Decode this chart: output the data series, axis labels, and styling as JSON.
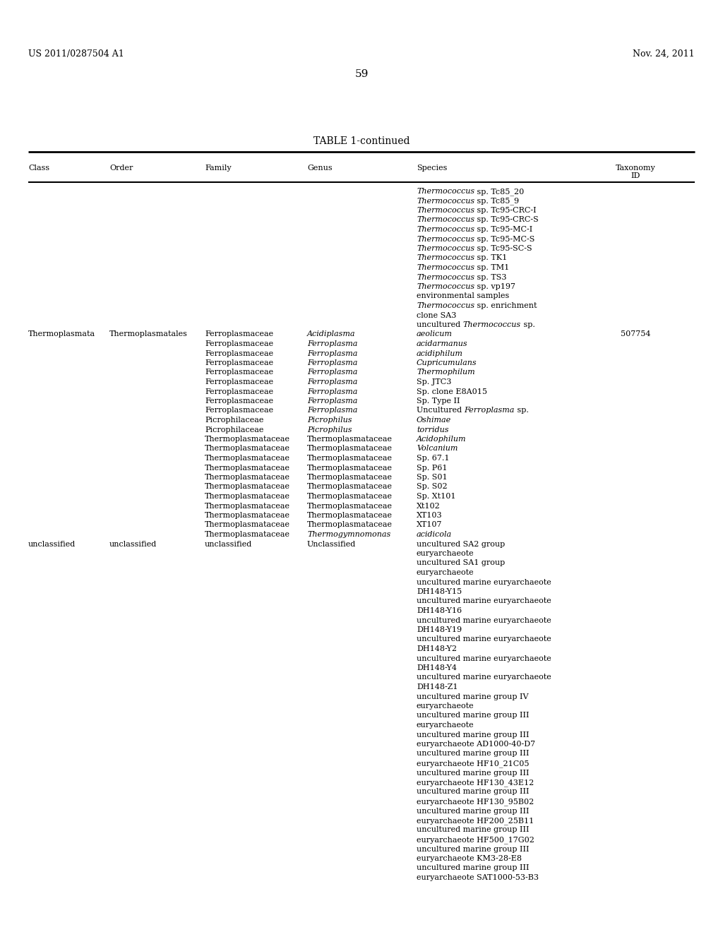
{
  "page_header_left": "US 2011/0287504 A1",
  "page_header_right": "Nov. 24, 2011",
  "page_number": "59",
  "table_title": "TABLE 1-continued",
  "background": "#ffffff",
  "text_color": "#000000",
  "rows": [
    {
      "class": "",
      "order": "",
      "family": "",
      "genus_text": "",
      "genus_italic": false,
      "species_parts": [
        [
          "italic",
          "Thermococcus"
        ],
        [
          "normal",
          " sp. Tc85_20"
        ]
      ],
      "taxid": ""
    },
    {
      "class": "",
      "order": "",
      "family": "",
      "genus_text": "",
      "genus_italic": false,
      "species_parts": [
        [
          "italic",
          "Thermococcus"
        ],
        [
          "normal",
          " sp. Tc85_9"
        ]
      ],
      "taxid": ""
    },
    {
      "class": "",
      "order": "",
      "family": "",
      "genus_text": "",
      "genus_italic": false,
      "species_parts": [
        [
          "italic",
          "Thermococcus"
        ],
        [
          "normal",
          " sp. Tc95-CRC-I"
        ]
      ],
      "taxid": ""
    },
    {
      "class": "",
      "order": "",
      "family": "",
      "genus_text": "",
      "genus_italic": false,
      "species_parts": [
        [
          "italic",
          "Thermococcus"
        ],
        [
          "normal",
          " sp. Tc95-CRC-S"
        ]
      ],
      "taxid": ""
    },
    {
      "class": "",
      "order": "",
      "family": "",
      "genus_text": "",
      "genus_italic": false,
      "species_parts": [
        [
          "italic",
          "Thermococcus"
        ],
        [
          "normal",
          " sp. Tc95-MC-I"
        ]
      ],
      "taxid": ""
    },
    {
      "class": "",
      "order": "",
      "family": "",
      "genus_text": "",
      "genus_italic": false,
      "species_parts": [
        [
          "italic",
          "Thermococcus"
        ],
        [
          "normal",
          " sp. Tc95-MC-S"
        ]
      ],
      "taxid": ""
    },
    {
      "class": "",
      "order": "",
      "family": "",
      "genus_text": "",
      "genus_italic": false,
      "species_parts": [
        [
          "italic",
          "Thermococcus"
        ],
        [
          "normal",
          " sp. Tc95-SC-S"
        ]
      ],
      "taxid": ""
    },
    {
      "class": "",
      "order": "",
      "family": "",
      "genus_text": "",
      "genus_italic": false,
      "species_parts": [
        [
          "italic",
          "Thermococcus"
        ],
        [
          "normal",
          " sp. TK1"
        ]
      ],
      "taxid": ""
    },
    {
      "class": "",
      "order": "",
      "family": "",
      "genus_text": "",
      "genus_italic": false,
      "species_parts": [
        [
          "italic",
          "Thermococcus"
        ],
        [
          "normal",
          " sp. TM1"
        ]
      ],
      "taxid": ""
    },
    {
      "class": "",
      "order": "",
      "family": "",
      "genus_text": "",
      "genus_italic": false,
      "species_parts": [
        [
          "italic",
          "Thermococcus"
        ],
        [
          "normal",
          " sp. TS3"
        ]
      ],
      "taxid": ""
    },
    {
      "class": "",
      "order": "",
      "family": "",
      "genus_text": "",
      "genus_italic": false,
      "species_parts": [
        [
          "italic",
          "Thermococcus"
        ],
        [
          "normal",
          " sp. vp197"
        ]
      ],
      "taxid": ""
    },
    {
      "class": "",
      "order": "",
      "family": "",
      "genus_text": "",
      "genus_italic": false,
      "species_parts": [
        [
          "normal",
          "environmental samples"
        ]
      ],
      "taxid": ""
    },
    {
      "class": "",
      "order": "",
      "family": "",
      "genus_text": "",
      "genus_italic": false,
      "species_parts": [
        [
          "italic",
          "Thermococcus"
        ],
        [
          "normal",
          " sp. enrichment"
        ]
      ],
      "taxid": "",
      "continuation": "clone SA3"
    },
    {
      "class": "",
      "order": "",
      "family": "",
      "genus_text": "",
      "genus_italic": false,
      "species_parts": [
        [
          "normal",
          "uncultured "
        ],
        [
          "italic",
          "Thermococcus"
        ],
        [
          "normal",
          " sp."
        ]
      ],
      "taxid": ""
    },
    {
      "class": "Thermoplasmata",
      "order": "Thermoplasmatales",
      "family": "Ferroplasmaceae",
      "genus_text": "Acidiplasma",
      "genus_italic": true,
      "species_parts": [
        [
          "italic",
          "aeolicum"
        ]
      ],
      "taxid": "507754"
    },
    {
      "class": "",
      "order": "",
      "family": "Ferroplasmaceae",
      "genus_text": "Ferroplasma",
      "genus_italic": true,
      "species_parts": [
        [
          "italic",
          "acidarmanus"
        ]
      ],
      "taxid": ""
    },
    {
      "class": "",
      "order": "",
      "family": "Ferroplasmaceae",
      "genus_text": "Ferroplasma",
      "genus_italic": true,
      "species_parts": [
        [
          "italic",
          "acidiphilum"
        ]
      ],
      "taxid": ""
    },
    {
      "class": "",
      "order": "",
      "family": "Ferroplasmaceae",
      "genus_text": "Ferroplasma",
      "genus_italic": true,
      "species_parts": [
        [
          "italic",
          "Cupricumulans"
        ]
      ],
      "taxid": ""
    },
    {
      "class": "",
      "order": "",
      "family": "Ferroplasmaceae",
      "genus_text": "Ferroplasma",
      "genus_italic": true,
      "species_parts": [
        [
          "italic",
          "Thermophilum"
        ]
      ],
      "taxid": ""
    },
    {
      "class": "",
      "order": "",
      "family": "Ferroplasmaceae",
      "genus_text": "Ferroplasma",
      "genus_italic": true,
      "species_parts": [
        [
          "normal",
          "Sp. JTC3"
        ]
      ],
      "taxid": ""
    },
    {
      "class": "",
      "order": "",
      "family": "Ferroplasmaceae",
      "genus_text": "Ferroplasma",
      "genus_italic": true,
      "species_parts": [
        [
          "normal",
          "Sp. clone E8A015"
        ]
      ],
      "taxid": ""
    },
    {
      "class": "",
      "order": "",
      "family": "Ferroplasmaceae",
      "genus_text": "Ferroplasma",
      "genus_italic": true,
      "species_parts": [
        [
          "normal",
          "Sp. Type II"
        ]
      ],
      "taxid": ""
    },
    {
      "class": "",
      "order": "",
      "family": "Ferroplasmaceae",
      "genus_text": "Ferroplasma",
      "genus_italic": true,
      "species_parts": [
        [
          "normal",
          "Uncultured "
        ],
        [
          "italic",
          "Ferroplasma"
        ],
        [
          "normal",
          " sp."
        ]
      ],
      "taxid": ""
    },
    {
      "class": "",
      "order": "",
      "family": "Picrophilaceae",
      "genus_text": "Picrophilus",
      "genus_italic": true,
      "species_parts": [
        [
          "italic",
          "Oshimae"
        ]
      ],
      "taxid": ""
    },
    {
      "class": "",
      "order": "",
      "family": "Picrophilaceae",
      "genus_text": "Picrophilus",
      "genus_italic": true,
      "species_parts": [
        [
          "italic",
          "torridus"
        ]
      ],
      "taxid": ""
    },
    {
      "class": "",
      "order": "",
      "family": "Thermoplasmataceae",
      "genus_text": "Thermoplasmataceae",
      "genus_italic": false,
      "species_parts": [
        [
          "italic",
          "Acidophilum"
        ]
      ],
      "taxid": ""
    },
    {
      "class": "",
      "order": "",
      "family": "Thermoplasmataceae",
      "genus_text": "Thermoplasmataceae",
      "genus_italic": false,
      "species_parts": [
        [
          "italic",
          "Volcanium"
        ]
      ],
      "taxid": ""
    },
    {
      "class": "",
      "order": "",
      "family": "Thermoplasmataceae",
      "genus_text": "Thermoplasmataceae",
      "genus_italic": false,
      "species_parts": [
        [
          "normal",
          "Sp. 67.1"
        ]
      ],
      "taxid": ""
    },
    {
      "class": "",
      "order": "",
      "family": "Thermoplasmataceae",
      "genus_text": "Thermoplasmataceae",
      "genus_italic": false,
      "species_parts": [
        [
          "normal",
          "Sp. P61"
        ]
      ],
      "taxid": ""
    },
    {
      "class": "",
      "order": "",
      "family": "Thermoplasmataceae",
      "genus_text": "Thermoplasmataceae",
      "genus_italic": false,
      "species_parts": [
        [
          "normal",
          "Sp. S01"
        ]
      ],
      "taxid": ""
    },
    {
      "class": "",
      "order": "",
      "family": "Thermoplasmataceae",
      "genus_text": "Thermoplasmataceae",
      "genus_italic": false,
      "species_parts": [
        [
          "normal",
          "Sp. S02"
        ]
      ],
      "taxid": ""
    },
    {
      "class": "",
      "order": "",
      "family": "Thermoplasmataceae",
      "genus_text": "Thermoplasmataceae",
      "genus_italic": false,
      "species_parts": [
        [
          "normal",
          "Sp. Xt101"
        ]
      ],
      "taxid": ""
    },
    {
      "class": "",
      "order": "",
      "family": "Thermoplasmataceae",
      "genus_text": "Thermoplasmataceae",
      "genus_italic": false,
      "species_parts": [
        [
          "normal",
          "Xt102"
        ]
      ],
      "taxid": ""
    },
    {
      "class": "",
      "order": "",
      "family": "Thermoplasmataceae",
      "genus_text": "Thermoplasmataceae",
      "genus_italic": false,
      "species_parts": [
        [
          "normal",
          "XT103"
        ]
      ],
      "taxid": ""
    },
    {
      "class": "",
      "order": "",
      "family": "Thermoplasmataceae",
      "genus_text": "Thermoplasmataceae",
      "genus_italic": false,
      "species_parts": [
        [
          "normal",
          "XT107"
        ]
      ],
      "taxid": ""
    },
    {
      "class": "",
      "order": "",
      "family": "Thermoplasmataceae",
      "genus_text": "Thermogymnomonas",
      "genus_italic": true,
      "species_parts": [
        [
          "italic",
          "acidicola"
        ]
      ],
      "taxid": ""
    },
    {
      "class": "unclassified",
      "order": "unclassified",
      "family": "unclassified",
      "genus_text": "Unclassified",
      "genus_italic": false,
      "species_parts": [
        [
          "normal",
          "uncultured SA2 group"
        ]
      ],
      "taxid": "",
      "continuation": "euryarchaeote"
    },
    {
      "class": "",
      "order": "",
      "family": "",
      "genus_text": "",
      "genus_italic": false,
      "species_parts": [
        [
          "normal",
          "uncultured SA1 group"
        ]
      ],
      "taxid": "",
      "continuation": "euryarchaeote"
    },
    {
      "class": "",
      "order": "",
      "family": "",
      "genus_text": "",
      "genus_italic": false,
      "species_parts": [
        [
          "normal",
          "uncultured marine euryarchaeote"
        ]
      ],
      "taxid": "",
      "continuation": "DH148-Y15"
    },
    {
      "class": "",
      "order": "",
      "family": "",
      "genus_text": "",
      "genus_italic": false,
      "species_parts": [
        [
          "normal",
          "uncultured marine euryarchaeote"
        ]
      ],
      "taxid": "",
      "continuation": "DH148-Y16"
    },
    {
      "class": "",
      "order": "",
      "family": "",
      "genus_text": "",
      "genus_italic": false,
      "species_parts": [
        [
          "normal",
          "uncultured marine euryarchaeote"
        ]
      ],
      "taxid": "",
      "continuation": "DH148-Y19"
    },
    {
      "class": "",
      "order": "",
      "family": "",
      "genus_text": "",
      "genus_italic": false,
      "species_parts": [
        [
          "normal",
          "uncultured marine euryarchaeote"
        ]
      ],
      "taxid": "",
      "continuation": "DH148-Y2"
    },
    {
      "class": "",
      "order": "",
      "family": "",
      "genus_text": "",
      "genus_italic": false,
      "species_parts": [
        [
          "normal",
          "uncultured marine euryarchaeote"
        ]
      ],
      "taxid": "",
      "continuation": "DH148-Y4"
    },
    {
      "class": "",
      "order": "",
      "family": "",
      "genus_text": "",
      "genus_italic": false,
      "species_parts": [
        [
          "normal",
          "uncultured marine euryarchaeote"
        ]
      ],
      "taxid": "",
      "continuation": "DH148-Z1"
    },
    {
      "class": "",
      "order": "",
      "family": "",
      "genus_text": "",
      "genus_italic": false,
      "species_parts": [
        [
          "normal",
          "uncultured marine group IV"
        ]
      ],
      "taxid": "",
      "continuation": "euryarchaeote"
    },
    {
      "class": "",
      "order": "",
      "family": "",
      "genus_text": "",
      "genus_italic": false,
      "species_parts": [
        [
          "normal",
          "uncultured marine group III"
        ]
      ],
      "taxid": "",
      "continuation": "euryarchaeote"
    },
    {
      "class": "",
      "order": "",
      "family": "",
      "genus_text": "",
      "genus_italic": false,
      "species_parts": [
        [
          "normal",
          "uncultured marine group III"
        ]
      ],
      "taxid": "",
      "continuation": "euryarchaeote AD1000-40-D7"
    },
    {
      "class": "",
      "order": "",
      "family": "",
      "genus_text": "",
      "genus_italic": false,
      "species_parts": [
        [
          "normal",
          "uncultured marine group III"
        ]
      ],
      "taxid": "",
      "continuation": "euryarchaeote HF10_21C05"
    },
    {
      "class": "",
      "order": "",
      "family": "",
      "genus_text": "",
      "genus_italic": false,
      "species_parts": [
        [
          "normal",
          "uncultured marine group III"
        ]
      ],
      "taxid": "",
      "continuation": "euryarchaeote HF130_43E12"
    },
    {
      "class": "",
      "order": "",
      "family": "",
      "genus_text": "",
      "genus_italic": false,
      "species_parts": [
        [
          "normal",
          "uncultured marine group III"
        ]
      ],
      "taxid": "",
      "continuation": "euryarchaeote HF130_95B02"
    },
    {
      "class": "",
      "order": "",
      "family": "",
      "genus_text": "",
      "genus_italic": false,
      "species_parts": [
        [
          "normal",
          "uncultured marine group III"
        ]
      ],
      "taxid": "",
      "continuation": "euryarchaeote HF200_25B11"
    },
    {
      "class": "",
      "order": "",
      "family": "",
      "genus_text": "",
      "genus_italic": false,
      "species_parts": [
        [
          "normal",
          "uncultured marine group III"
        ]
      ],
      "taxid": "",
      "continuation": "euryarchaeote HF500_17G02"
    },
    {
      "class": "",
      "order": "",
      "family": "",
      "genus_text": "",
      "genus_italic": false,
      "species_parts": [
        [
          "normal",
          "uncultured marine group III"
        ]
      ],
      "taxid": "",
      "continuation": "euryarchaeote KM3-28-E8"
    },
    {
      "class": "",
      "order": "",
      "family": "",
      "genus_text": "",
      "genus_italic": false,
      "species_parts": [
        [
          "normal",
          "uncultured marine group III"
        ]
      ],
      "taxid": "",
      "continuation": "euryarchaeote SAT1000-53-B3"
    }
  ]
}
